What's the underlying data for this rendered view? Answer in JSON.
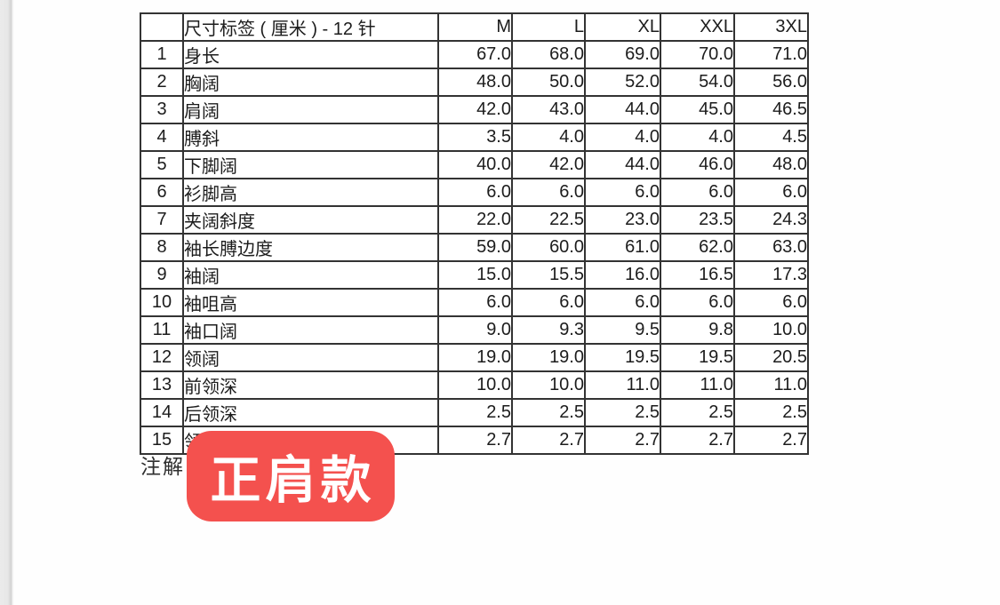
{
  "table": {
    "corner_label": "",
    "title": "尺寸标签 ( 厘米 ) - 12 针",
    "size_columns": [
      "M",
      "L",
      "XL",
      "XXL",
      "3XL"
    ],
    "rows": [
      {
        "num": "1",
        "label": "身长",
        "values": [
          "67.0",
          "68.0",
          "69.0",
          "70.0",
          "71.0"
        ]
      },
      {
        "num": "2",
        "label": "胸阔",
        "values": [
          "48.0",
          "50.0",
          "52.0",
          "54.0",
          "56.0"
        ]
      },
      {
        "num": "3",
        "label": "肩阔",
        "values": [
          "42.0",
          "43.0",
          "44.0",
          "45.0",
          "46.5"
        ]
      },
      {
        "num": "4",
        "label": "膊斜",
        "values": [
          "3.5",
          "4.0",
          "4.0",
          "4.0",
          "4.5"
        ]
      },
      {
        "num": "5",
        "label": "下脚阔",
        "values": [
          "40.0",
          "42.0",
          "44.0",
          "46.0",
          "48.0"
        ]
      },
      {
        "num": "6",
        "label": "衫脚高",
        "values": [
          "6.0",
          "6.0",
          "6.0",
          "6.0",
          "6.0"
        ]
      },
      {
        "num": "7",
        "label": "夹阔斜度",
        "values": [
          "22.0",
          "22.5",
          "23.0",
          "23.5",
          "24.3"
        ]
      },
      {
        "num": "8",
        "label": "袖长膊边度",
        "values": [
          "59.0",
          "60.0",
          "61.0",
          "62.0",
          "63.0"
        ]
      },
      {
        "num": "9",
        "label": "袖阔",
        "values": [
          "15.0",
          "15.5",
          "16.0",
          "16.5",
          "17.3"
        ]
      },
      {
        "num": "10",
        "label": "袖咀高",
        "values": [
          "6.0",
          "6.0",
          "6.0",
          "6.0",
          "6.0"
        ]
      },
      {
        "num": "11",
        "label": "袖口阔",
        "values": [
          "9.0",
          "9.3",
          "9.5",
          "9.8",
          "10.0"
        ]
      },
      {
        "num": "12",
        "label": "领阔",
        "values": [
          "19.0",
          "19.0",
          "19.5",
          "19.5",
          "20.5"
        ]
      },
      {
        "num": "13",
        "label": "前领深",
        "values": [
          "10.0",
          "10.0",
          "11.0",
          "11.0",
          "11.0"
        ]
      },
      {
        "num": "14",
        "label": "后领深",
        "values": [
          "2.5",
          "2.5",
          "2.5",
          "2.5",
          "2.5"
        ]
      },
      {
        "num": "15",
        "label": "领贴高",
        "values": [
          "2.7",
          "2.7",
          "2.7",
          "2.7",
          "2.7"
        ]
      }
    ]
  },
  "footer": {
    "note_label": "注解",
    "badge_label": "正肩款",
    "badge_color": "#f4514e",
    "badge_text_color": "#ffffff"
  }
}
